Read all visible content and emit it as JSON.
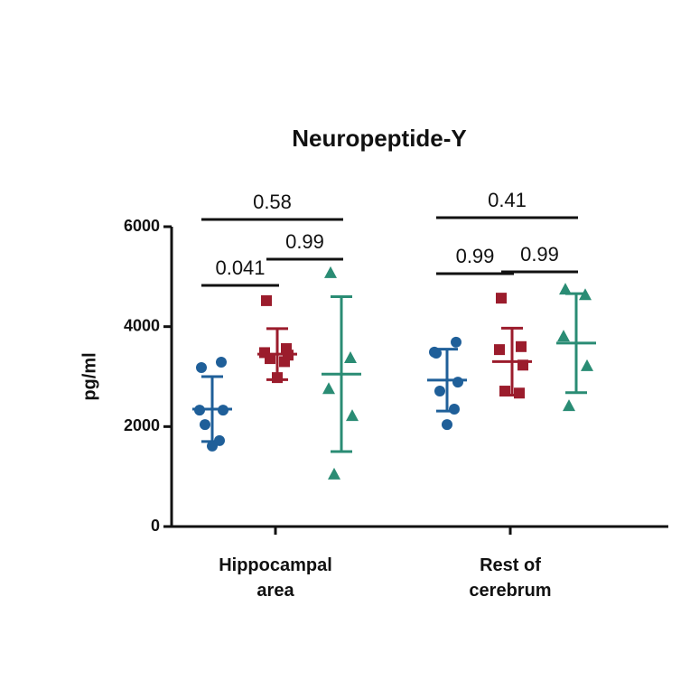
{
  "chart_data": {
    "type": "dot",
    "title": "Neuropeptide-Y",
    "y_label": "pg/ml",
    "categories": [
      "Hippocampal area",
      "Rest of cerebrum"
    ],
    "ylim": [
      0,
      6000
    ],
    "yticks": [
      0,
      2000,
      4000,
      6000
    ],
    "series": [
      {
        "color": "#1f5f99",
        "marker": "circle",
        "values": [
          [
            3180,
            3290,
            2330,
            2330,
            2040,
            1720,
            1610
          ],
          [
            3470,
            3690,
            3490,
            2890,
            2710,
            2350,
            2040
          ]
        ],
        "means": [
          2350,
          2930
        ],
        "sds": [
          650,
          620
        ]
      },
      {
        "color": "#9b1c2c",
        "marker": "square",
        "values": [
          [
            4520,
            3560,
            3480,
            3430,
            3360,
            3300,
            2980
          ],
          [
            4570,
            3600,
            3540,
            3230,
            2710,
            2670
          ]
        ],
        "means": [
          3450,
          3300
        ],
        "sds": [
          510,
          670
        ]
      },
      {
        "color": "#2a8c74",
        "marker": "triangle",
        "values": [
          [
            5080,
            3380,
            2760,
            2220,
            1050
          ],
          [
            4750,
            4640,
            3810,
            3220,
            2420
          ]
        ],
        "means": [
          3050,
          3670
        ],
        "sds": [
          1550,
          990
        ]
      }
    ],
    "comparisons": [
      {
        "group": 0,
        "from": 0,
        "to": 2,
        "label": "0.58"
      },
      {
        "group": 0,
        "from": 0,
        "to": 1,
        "label": "0.041"
      },
      {
        "group": 0,
        "from": 1,
        "to": 2,
        "label": "0.99"
      },
      {
        "group": 1,
        "from": 0,
        "to": 2,
        "label": "0.41"
      },
      {
        "group": 1,
        "from": 0,
        "to": 1,
        "label": "0.99"
      },
      {
        "group": 1,
        "from": 1,
        "to": 2,
        "label": "0.99"
      }
    ]
  }
}
